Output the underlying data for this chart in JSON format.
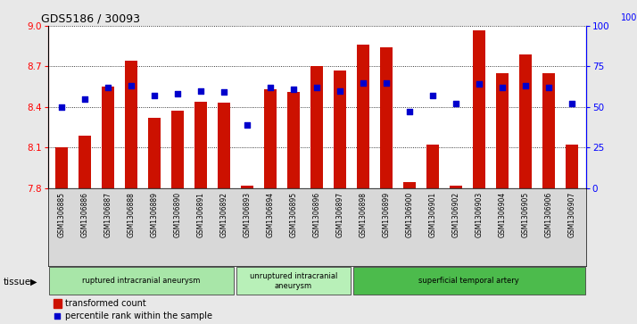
{
  "title": "GDS5186 / 30093",
  "samples": [
    "GSM1306885",
    "GSM1306886",
    "GSM1306887",
    "GSM1306888",
    "GSM1306889",
    "GSM1306890",
    "GSM1306891",
    "GSM1306892",
    "GSM1306893",
    "GSM1306894",
    "GSM1306895",
    "GSM1306896",
    "GSM1306897",
    "GSM1306898",
    "GSM1306899",
    "GSM1306900",
    "GSM1306901",
    "GSM1306902",
    "GSM1306903",
    "GSM1306904",
    "GSM1306905",
    "GSM1306906",
    "GSM1306907"
  ],
  "transformed_count": [
    8.1,
    8.19,
    8.55,
    8.74,
    8.32,
    8.37,
    8.44,
    8.43,
    7.82,
    8.53,
    8.51,
    8.7,
    8.67,
    8.86,
    8.84,
    7.84,
    8.12,
    7.82,
    8.97,
    8.65,
    8.79,
    8.65,
    8.12
  ],
  "percentile_rank": [
    50,
    55,
    62,
    63,
    57,
    58,
    60,
    59,
    39,
    62,
    61,
    62,
    60,
    65,
    65,
    47,
    57,
    52,
    64,
    62,
    63,
    62,
    52
  ],
  "bar_color": "#CC1100",
  "dot_color": "#0000CC",
  "ylim_left": [
    7.8,
    9.0
  ],
  "ylim_right": [
    0,
    100
  ],
  "yticks_left": [
    7.8,
    8.1,
    8.4,
    8.7,
    9.0
  ],
  "yticks_right": [
    0,
    25,
    50,
    75,
    100
  ],
  "group_labels": [
    "ruptured intracranial aneurysm",
    "unruptured intracranial\naneurysm",
    "superficial temporal artery"
  ],
  "group_starts": [
    0,
    8,
    13
  ],
  "group_ends": [
    8,
    13,
    23
  ],
  "group_colors": [
    "#a8e6a8",
    "#b8f0b8",
    "#4cbb4c"
  ],
  "fig_bg": "#e8e8e8",
  "plot_bg": "#ffffff",
  "xlabel_bg": "#d8d8d8"
}
